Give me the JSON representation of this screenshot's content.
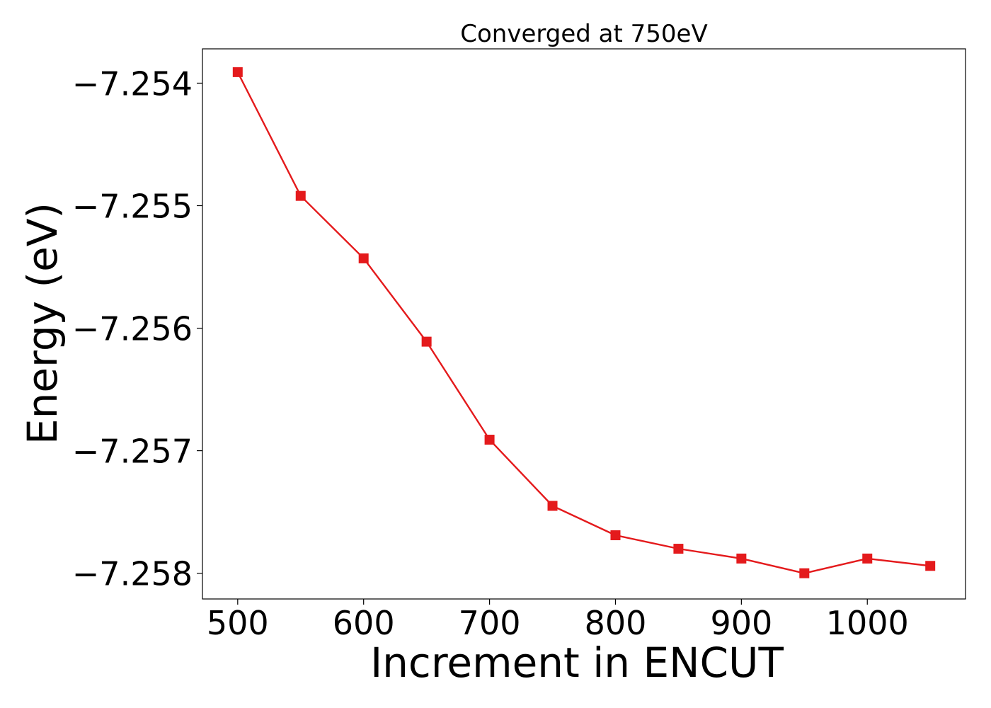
{
  "chart_data": {
    "type": "line",
    "title": "Converged at 750eV",
    "xlabel": "Increment in ENCUT",
    "ylabel": "Energy (eV)",
    "xlim": [
      472,
      1078
    ],
    "ylim": [
      -7.25821,
      -7.25372
    ],
    "xticks": [
      500,
      600,
      700,
      800,
      900,
      1000
    ],
    "yticks": [
      -7.254,
      -7.255,
      -7.256,
      -7.257,
      -7.258
    ],
    "ytick_labels": [
      "−7.254",
      "−7.255",
      "−7.256",
      "−7.257",
      "−7.258"
    ],
    "grid": false,
    "legend": "none",
    "line_color": "#e41a1c",
    "marker": "square",
    "x": [
      500,
      550,
      600,
      650,
      700,
      750,
      800,
      850,
      900,
      950,
      1000,
      1050
    ],
    "y": [
      -7.25391,
      -7.25492,
      -7.25543,
      -7.25611,
      -7.25691,
      -7.25745,
      -7.25769,
      -7.2578,
      -7.25788,
      -7.258,
      -7.25788,
      -7.25794
    ]
  }
}
